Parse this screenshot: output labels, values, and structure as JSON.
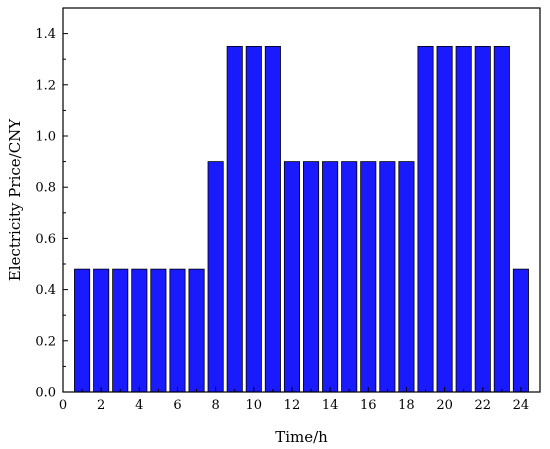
{
  "chart_data": {
    "type": "bar",
    "xlabel": "Time/h",
    "ylabel": "Electricity Price/CNY",
    "xlim": [
      0,
      25
    ],
    "ylim": [
      0,
      1.5
    ],
    "xticks": [
      0,
      2,
      4,
      6,
      8,
      10,
      12,
      14,
      16,
      18,
      20,
      22,
      24
    ],
    "yticks": [
      0.0,
      0.2,
      0.4,
      0.6,
      0.8,
      1.0,
      1.2,
      1.4
    ],
    "xtick_labels": [
      "0",
      "2",
      "4",
      "6",
      "8",
      "10",
      "12",
      "14",
      "16",
      "18",
      "20",
      "22",
      "24"
    ],
    "ytick_labels": [
      "0.0",
      "0.2",
      "0.4",
      "0.6",
      "0.8",
      "1.0",
      "1.2",
      "1.4"
    ],
    "x": [
      1,
      2,
      3,
      4,
      5,
      6,
      7,
      8,
      9,
      10,
      11,
      12,
      13,
      14,
      15,
      16,
      17,
      18,
      19,
      20,
      21,
      22,
      23,
      24
    ],
    "values": [
      0.48,
      0.48,
      0.48,
      0.48,
      0.48,
      0.48,
      0.48,
      0.9,
      1.35,
      1.35,
      1.35,
      0.9,
      0.9,
      0.9,
      0.9,
      0.9,
      0.9,
      0.9,
      1.35,
      1.35,
      1.35,
      1.35,
      1.35,
      0.48
    ],
    "bar_color": "#1a1aff",
    "grid": false,
    "legend": "none"
  }
}
